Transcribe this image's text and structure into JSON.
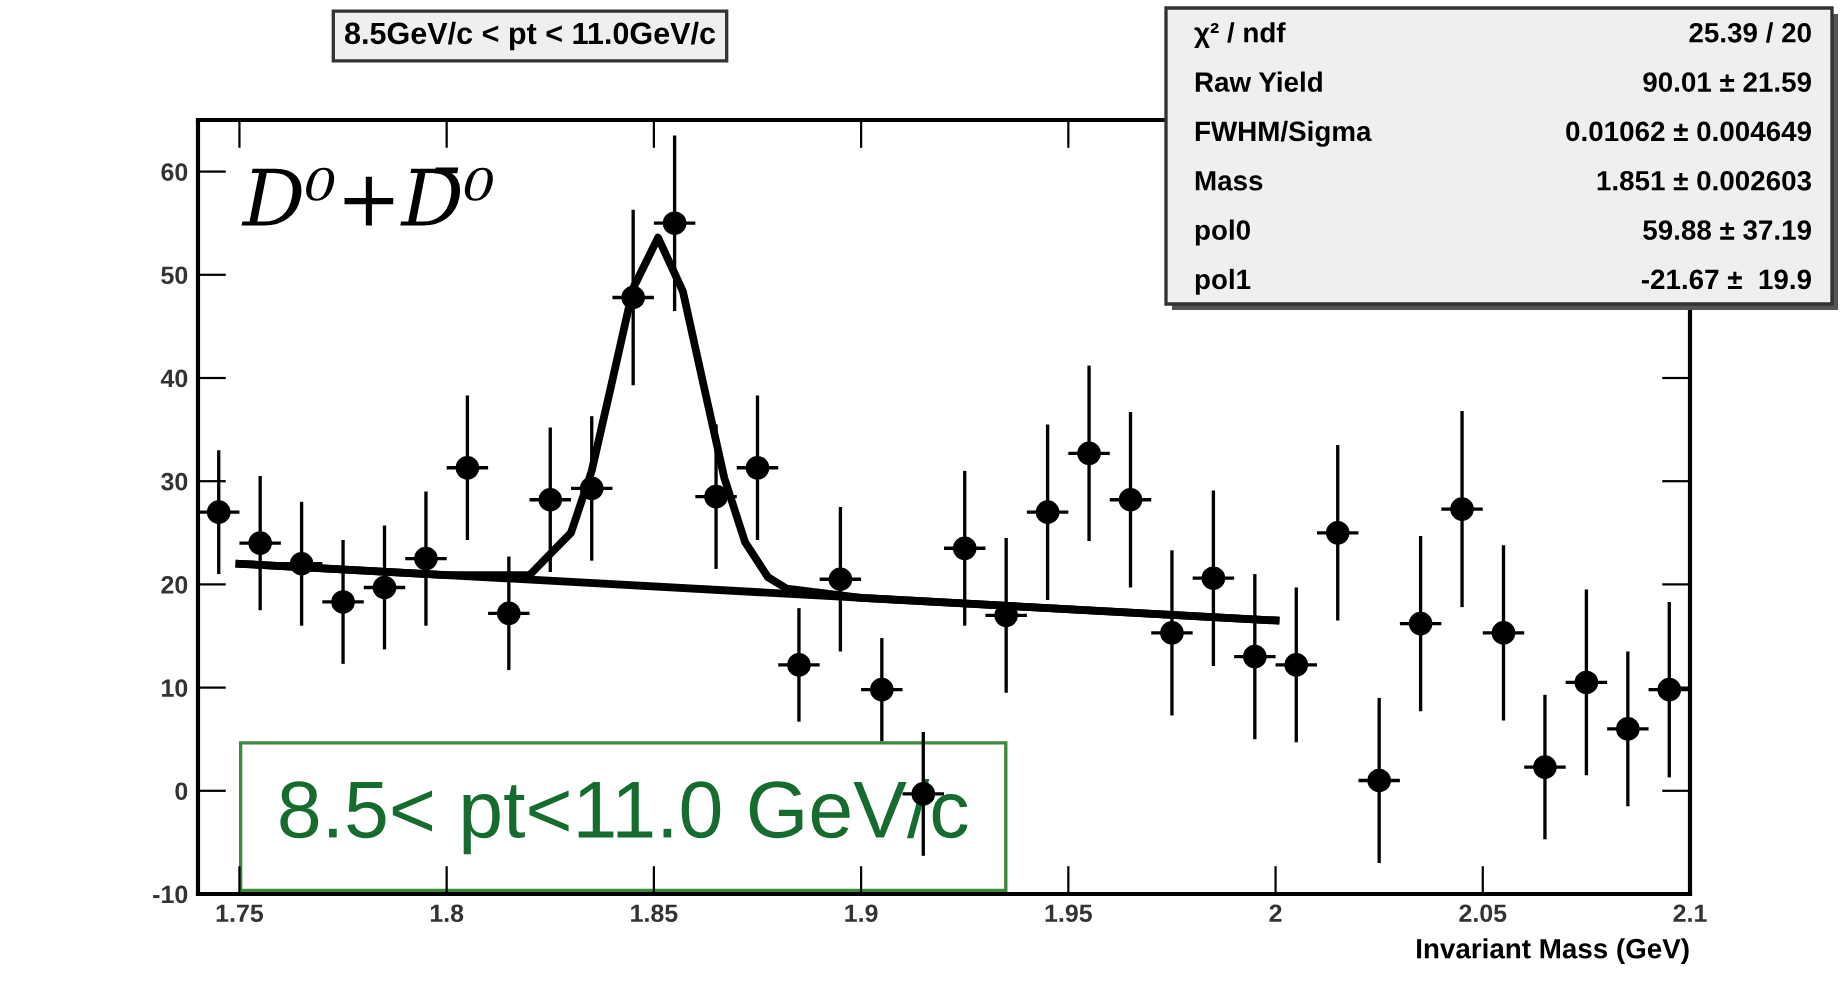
{
  "chart_data": {
    "type": "scatter",
    "title": "8.5GeV/c < pt < 11.0GeV/c",
    "xlabel": "Invariant Mass (GeV)",
    "xlim": [
      1.74,
      2.1
    ],
    "ylim": [
      -10,
      65
    ],
    "xticks": [
      1.75,
      {
        "value": 1.8,
        "label": "1.8"
      },
      1.85,
      {
        "value": 1.9,
        "label": "1.9"
      },
      1.95,
      {
        "value": 2.0,
        "label": "2"
      },
      2.05,
      {
        "value": 2.1,
        "label": "2.1"
      }
    ],
    "yticks": [
      -10,
      0,
      10,
      20,
      30,
      40,
      50,
      60
    ],
    "grid": false,
    "marker": "circle",
    "series": [
      {
        "color": "#000000",
        "x": [
          1.745,
          1.755,
          1.765,
          1.775,
          1.785,
          1.795,
          1.805,
          1.815,
          1.825,
          1.835,
          1.845,
          1.855,
          1.865,
          1.875,
          1.885,
          1.895,
          1.905,
          1.915,
          1.925,
          1.935,
          1.945,
          1.955,
          1.965,
          1.975,
          1.985,
          1.995,
          2.005,
          2.015,
          2.025,
          2.035,
          2.045,
          2.055,
          2.065,
          2.075,
          2.085,
          2.095
        ],
        "values": [
          27,
          24,
          22,
          18.3,
          19.7,
          22.5,
          31.3,
          17.2,
          28.2,
          29.3,
          47.8,
          55,
          28.5,
          31.3,
          12.2,
          20.5,
          9.8,
          -0.3,
          23.5,
          17,
          27,
          32.7,
          28.2,
          15.3,
          20.6,
          13,
          12.2,
          25,
          1,
          16.2,
          27.3,
          15.3,
          2.3,
          10.5,
          6,
          9.8
        ],
        "errors": [
          6,
          6.5,
          6,
          6,
          6,
          6.5,
          7,
          5.5,
          7,
          7,
          8.5,
          8.5,
          7,
          7,
          5.5,
          7,
          5,
          6,
          7.5,
          7.5,
          8.5,
          8.5,
          8.5,
          8,
          8.5,
          8,
          7.5,
          8.5,
          8,
          8.5,
          9.5,
          8.5,
          7,
          9,
          7.5,
          8.5
        ],
        "xerrors": [
          0.005,
          0.005,
          0.005,
          0.005,
          0.005,
          0.005,
          0.005,
          0.005,
          0.005,
          0.005,
          0.005,
          0.005,
          0.005,
          0.005,
          0.005,
          0.005,
          0.005,
          0.005,
          0.005,
          0.005,
          0.005,
          0.005,
          0.005,
          0.005,
          0.005,
          0.005,
          0.005,
          0.005,
          0.005,
          0.005,
          0.005,
          0.005,
          0.005,
          0.005,
          0.005,
          0.005
        ]
      },
      {
        "type": "line",
        "color": "#000000",
        "line_style": "solid",
        "marker": "none",
        "x": [
          1.75,
          1.8,
          1.82,
          1.83,
          1.835,
          1.84,
          1.845,
          1.851,
          1.857,
          1.862,
          1.867,
          1.872,
          1.8775,
          1.882,
          1.9,
          2.0
        ],
        "values": [
          22.0,
          20.9,
          20.9,
          25.0,
          31.0,
          39.8,
          48.7,
          53.6,
          48.4,
          39.3,
          30.3,
          24.1,
          20.7,
          19.6,
          18.7,
          16.5
        ]
      },
      {
        "type": "line",
        "color": "#000000",
        "line_style": "solid",
        "marker": "none",
        "x": [
          1.75,
          2.0
        ],
        "values": [
          22.0,
          16.5
        ]
      }
    ],
    "annotations": [
      "D⁰+D̄⁰",
      "8.5< pt<11.0 GeV/c",
      "χ² / ndf",
      "25.39 / 20",
      "Raw Yield",
      "90.01 ± 21.59",
      "FWHM/Sigma",
      "0.01062 ± 0.004649",
      "Mass",
      "1.851 ± 0.002603",
      "pol0",
      "59.88 ± 37.19",
      "pol1",
      "-21.67 ±  19.9"
    ]
  }
}
